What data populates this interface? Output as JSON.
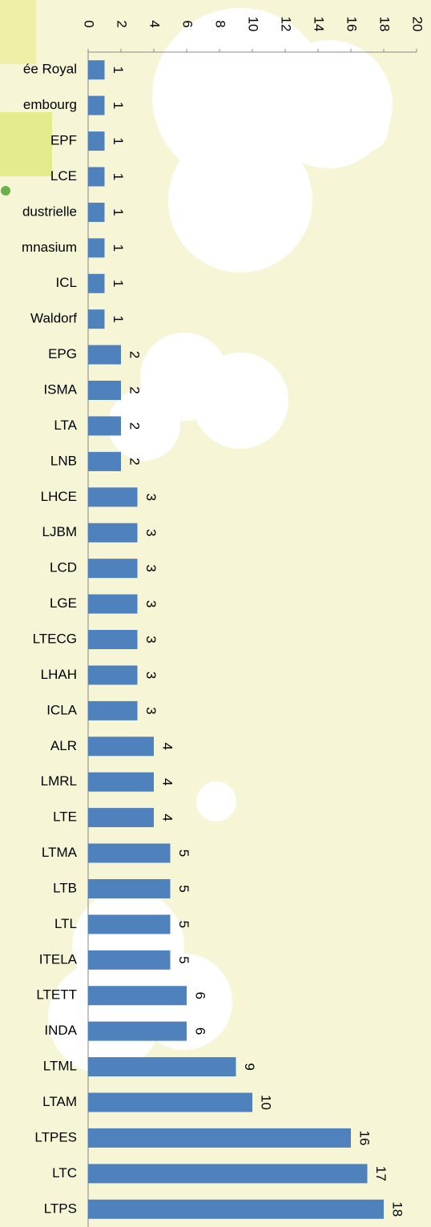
{
  "chart_data": {
    "type": "bar",
    "orientation": "horizontal",
    "color": "#4f81bd",
    "categories": [
      "ée Royal",
      "embourg",
      "EPF",
      "LCE",
      "dustrielle",
      "mnasium",
      "ICL",
      "Waldorf",
      "EPG",
      "ISMA",
      "LTA",
      "LNB",
      "LHCE",
      "LJBM",
      "LCD",
      "LGE",
      "LTECG",
      "LHAH",
      "ICLA",
      "ALR",
      "LMRL",
      "LTE",
      "LTMA",
      "LTB",
      "LTL",
      "ITELA",
      "LTETT",
      "INDA",
      "LTML",
      "LTAM",
      "LTPES",
      "LTC",
      "LTPS"
    ],
    "values": [
      1,
      1,
      1,
      1,
      1,
      1,
      1,
      1,
      2,
      2,
      2,
      2,
      3,
      3,
      3,
      3,
      3,
      3,
      3,
      4,
      4,
      4,
      5,
      5,
      5,
      5,
      6,
      6,
      9,
      10,
      16,
      17,
      18
    ],
    "xlim": [
      0,
      20
    ],
    "xticks": [
      0,
      2,
      4,
      6,
      8,
      10,
      12,
      14,
      16,
      18,
      20
    ]
  }
}
